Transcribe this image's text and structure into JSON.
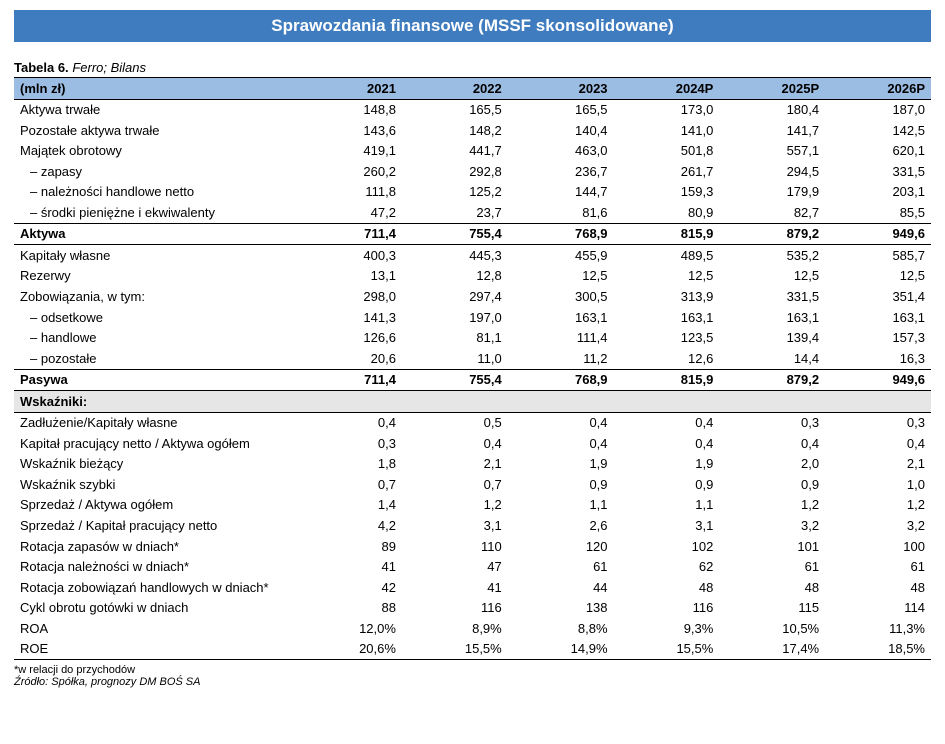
{
  "banner": "Sprawozdania finansowe (MSSF skonsolidowane)",
  "caption": {
    "bold": "Tabela 6.",
    "italic": "Ferro; Bilans"
  },
  "table": {
    "unit_label": "(mln zł)",
    "years": [
      "2021",
      "2022",
      "2023",
      "2024P",
      "2025P",
      "2026P"
    ],
    "rows": [
      {
        "label": "Aktywa trwałe",
        "vals": [
          "148,8",
          "165,5",
          "165,5",
          "173,0",
          "180,4",
          "187,0"
        ]
      },
      {
        "label": "Pozostałe aktywa trwałe",
        "vals": [
          "143,6",
          "148,2",
          "140,4",
          "141,0",
          "141,7",
          "142,5"
        ]
      },
      {
        "label": "Majątek obrotowy",
        "vals": [
          "419,1",
          "441,7",
          "463,0",
          "501,8",
          "557,1",
          "620,1"
        ]
      },
      {
        "label": "– zapasy",
        "indent": true,
        "vals": [
          "260,2",
          "292,8",
          "236,7",
          "261,7",
          "294,5",
          "331,5"
        ]
      },
      {
        "label": "– należności handlowe netto",
        "indent": true,
        "vals": [
          "111,8",
          "125,2",
          "144,7",
          "159,3",
          "179,9",
          "203,1"
        ]
      },
      {
        "label": "– środki pieniężne i ekwiwalenty",
        "indent": true,
        "vals": [
          "47,2",
          "23,7",
          "81,6",
          "80,9",
          "82,7",
          "85,5"
        ]
      },
      {
        "label": "Aktywa",
        "bold": true,
        "bt": true,
        "bb": true,
        "vals": [
          "711,4",
          "755,4",
          "768,9",
          "815,9",
          "879,2",
          "949,6"
        ]
      },
      {
        "label": "Kapitały własne",
        "vals": [
          "400,3",
          "445,3",
          "455,9",
          "489,5",
          "535,2",
          "585,7"
        ]
      },
      {
        "label": "Rezerwy",
        "vals": [
          "13,1",
          "12,8",
          "12,5",
          "12,5",
          "12,5",
          "12,5"
        ]
      },
      {
        "label": "Zobowiązania, w tym:",
        "vals": [
          "298,0",
          "297,4",
          "300,5",
          "313,9",
          "331,5",
          "351,4"
        ]
      },
      {
        "label": "– odsetkowe",
        "indent": true,
        "vals": [
          "141,3",
          "197,0",
          "163,1",
          "163,1",
          "163,1",
          "163,1"
        ]
      },
      {
        "label": "– handlowe",
        "indent": true,
        "vals": [
          "126,6",
          "81,1",
          "111,4",
          "123,5",
          "139,4",
          "157,3"
        ]
      },
      {
        "label": "– pozostałe",
        "indent": true,
        "vals": [
          "20,6",
          "11,0",
          "11,2",
          "12,6",
          "14,4",
          "16,3"
        ]
      },
      {
        "label": "Pasywa",
        "bold": true,
        "bt": true,
        "vals": [
          "711,4",
          "755,4",
          "768,9",
          "815,9",
          "879,2",
          "949,6"
        ]
      },
      {
        "label": "Wskaźniki:",
        "section": true,
        "btk": true,
        "bb": true,
        "vals": [
          "",
          "",
          "",
          "",
          "",
          ""
        ]
      },
      {
        "label": "Zadłużenie/Kapitały własne",
        "vals": [
          "0,4",
          "0,5",
          "0,4",
          "0,4",
          "0,3",
          "0,3"
        ]
      },
      {
        "label": "Kapitał pracujący netto / Aktywa ogółem",
        "vals": [
          "0,3",
          "0,4",
          "0,4",
          "0,4",
          "0,4",
          "0,4"
        ]
      },
      {
        "label": "Wskaźnik bieżący",
        "vals": [
          "1,8",
          "2,1",
          "1,9",
          "1,9",
          "2,0",
          "2,1"
        ]
      },
      {
        "label": "Wskaźnik szybki",
        "vals": [
          "0,7",
          "0,7",
          "0,9",
          "0,9",
          "0,9",
          "1,0"
        ]
      },
      {
        "label": "Sprzedaż / Aktywa ogółem",
        "vals": [
          "1,4",
          "1,2",
          "1,1",
          "1,1",
          "1,2",
          "1,2"
        ]
      },
      {
        "label": "Sprzedaż / Kapitał pracujący netto",
        "vals": [
          "4,2",
          "3,1",
          "2,6",
          "3,1",
          "3,2",
          "3,2"
        ]
      },
      {
        "label": "Rotacja zapasów w dniach*",
        "vals": [
          "89",
          "110",
          "120",
          "102",
          "101",
          "100"
        ]
      },
      {
        "label": "Rotacja należności w dniach*",
        "vals": [
          "41",
          "47",
          "61",
          "62",
          "61",
          "61"
        ]
      },
      {
        "label": "Rotacja zobowiązań handlowych w dniach*",
        "vals": [
          "42",
          "41",
          "44",
          "48",
          "48",
          "48"
        ]
      },
      {
        "label": "Cykl obrotu gotówki w dniach",
        "vals": [
          "88",
          "116",
          "138",
          "116",
          "115",
          "114"
        ]
      },
      {
        "label": "ROA",
        "vals": [
          "12,0%",
          "8,9%",
          "8,8%",
          "9,3%",
          "10,5%",
          "11,3%"
        ]
      },
      {
        "label": "ROE",
        "bb": true,
        "vals": [
          "20,6%",
          "15,5%",
          "14,9%",
          "15,5%",
          "17,4%",
          "18,5%"
        ]
      }
    ]
  },
  "footnote": "*w relacji do przychodów",
  "source": "Źródło: Spółka, prognozy DM BOŚ SA",
  "style": {
    "banner_bg": "#3f7bbf",
    "header_bg": "#9cbde3",
    "section_bg": "#e6e6e6"
  }
}
